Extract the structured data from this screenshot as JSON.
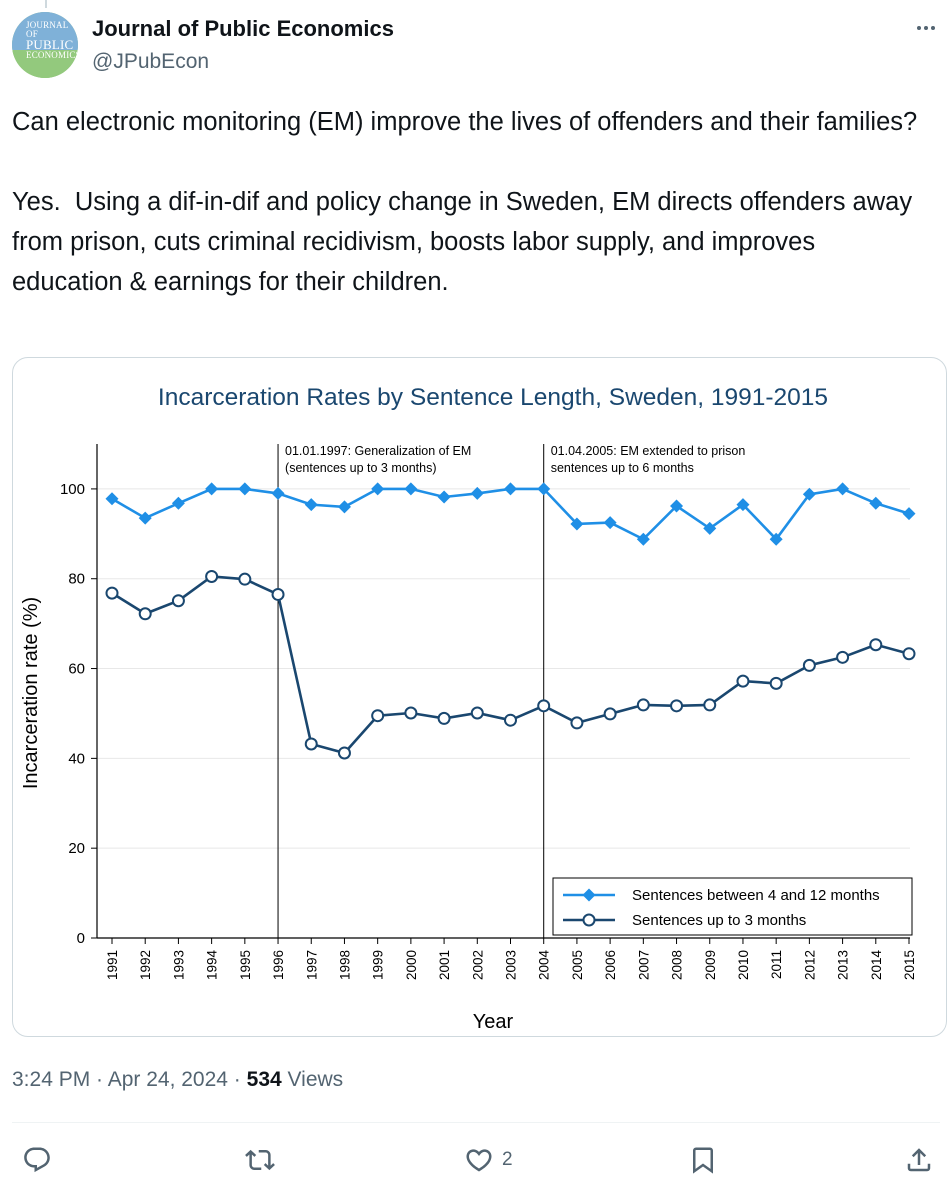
{
  "account": {
    "name": "Journal of Public Economics",
    "handle": "@JPubEcon",
    "avatar_text": [
      "JOURNAL OF",
      "PUBLIC",
      "ECONOMICS"
    ]
  },
  "tweet": {
    "text": "Can electronic monitoring (EM) improve the lives of offenders and their families?\n\nYes.  Using a dif-in-dif and policy change in Sweden, EM directs offenders away from prison, cuts criminal recidivism, boosts labor supply, and improves   education & earnings for their children.",
    "time": "3:24 PM · Apr 24, 2024 · ",
    "views_count": "534",
    "views_label": " Views"
  },
  "actions": {
    "reply_icon": "reply-icon",
    "retweet_icon": "retweet-icon",
    "like_icon": "heart-icon",
    "like_count": "2",
    "bookmark_icon": "bookmark-icon",
    "share_icon": "share-icon"
  },
  "colors": {
    "series_long": "#1f8fe6",
    "series_short": "#1a476f",
    "title": "#1a476f",
    "text_secondary": "#536471"
  },
  "chart_data": {
    "type": "line",
    "title": "Incarceration Rates by Sentence Length, Sweden, 1991-2015",
    "xlabel": "Year",
    "ylabel": "Incarceration rate (%)",
    "ylim": [
      0,
      110
    ],
    "yticks": [
      0,
      20,
      40,
      60,
      80,
      100
    ],
    "x": [
      "1991",
      "1992",
      "1993",
      "1994",
      "1995",
      "1996",
      "1997",
      "1998",
      "1999",
      "2000",
      "2001",
      "2002",
      "2003",
      "2004",
      "2005",
      "2006",
      "2007",
      "2008",
      "2009",
      "2010",
      "2011",
      "2012",
      "2013",
      "2014",
      "2015"
    ],
    "series": [
      {
        "name": "Sentences between 4 and 12 months",
        "marker": "diamond",
        "values": [
          97.8,
          93.5,
          96.8,
          100,
          100,
          99,
          96.5,
          96,
          100,
          100,
          98.2,
          99,
          100,
          100,
          92.2,
          92.5,
          88.8,
          96.2,
          91.2,
          96.5,
          88.8,
          98.8,
          100,
          96.8,
          94.5
        ]
      },
      {
        "name": "Sentences up to 3 months",
        "marker": "circle",
        "values": [
          76.8,
          72.2,
          75.1,
          80.5,
          79.9,
          76.5,
          43.2,
          41.2,
          49.5,
          50.1,
          48.9,
          50.1,
          48.5,
          51.7,
          47.9,
          49.9,
          51.9,
          51.7,
          51.9,
          57.2,
          56.7,
          60.7,
          62.5,
          65.3,
          63.3
        ]
      }
    ],
    "annotations": [
      {
        "x": "1996",
        "lines": [
          "01.01.1997: Generalization of EM",
          "(sentences up to 3 months)"
        ]
      },
      {
        "x": "2004",
        "lines": [
          "01.04.2005: EM extended to prison",
          "sentences up to 6 months"
        ]
      }
    ],
    "legend_position": "bottom-right",
    "grid": true
  }
}
